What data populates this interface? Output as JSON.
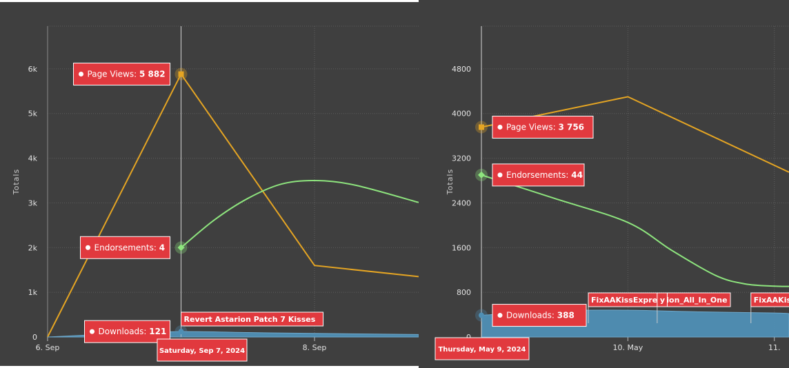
{
  "colors": {
    "background": "#3f3f3f",
    "grid": "#5e5e5e",
    "page_views": "#e5a523",
    "endorsements": "#8ee57e",
    "downloads": "#4f8fb5",
    "tooltip": "#e1393e"
  },
  "chart_data": [
    {
      "type": "line",
      "ylabel": "Totals",
      "xlabel": "",
      "ylim": [
        0,
        7000
      ],
      "x_ticks": [
        {
          "x": 6.0,
          "label": "6. Sep"
        },
        {
          "x": 8.0,
          "label": "8. Sep"
        }
      ],
      "y_ticks": [
        {
          "v": 0,
          "label": "0"
        },
        {
          "v": 1000,
          "label": "1k"
        },
        {
          "v": 2000,
          "label": "2k"
        },
        {
          "v": 3000,
          "label": "3k"
        },
        {
          "v": 4000,
          "label": "4k"
        },
        {
          "v": 5000,
          "label": "5k"
        },
        {
          "v": 6000,
          "label": "6k"
        }
      ],
      "grid": true,
      "x_range": [
        6.0,
        8.78
      ],
      "series": [
        {
          "name": "Page Views",
          "key": "page_views",
          "kind": "line",
          "marker": "square",
          "x": [
            6.0,
            7.0,
            8.0,
            8.78
          ],
          "values": [
            0,
            5882,
            1600,
            1350
          ]
        },
        {
          "name": "Endorsements",
          "key": "endorsements",
          "kind": "spline",
          "marker": "diamond",
          "x": [
            7.0,
            7.25,
            7.5,
            7.75,
            8.0,
            8.3,
            8.78
          ],
          "values": [
            2000,
            2620,
            3100,
            3420,
            3500,
            3400,
            3010
          ]
        },
        {
          "name": "Downloads",
          "key": "downloads",
          "kind": "area",
          "marker": "circle",
          "x": [
            6.0,
            6.5,
            7.0,
            7.5,
            8.0,
            8.78
          ],
          "values": [
            0,
            70,
            121,
            100,
            80,
            55
          ]
        }
      ],
      "hover_x": 7.0,
      "tooltips": [
        {
          "key": "page_views",
          "label": "Page Views: ",
          "value": "5 882"
        },
        {
          "key": "endorsements",
          "label": "Endorsements: ",
          "value": "4"
        },
        {
          "key": "downloads",
          "label": "Downloads: ",
          "value": "121"
        }
      ],
      "date_label": "Saturday, Sep 7, 2024",
      "flags": [
        {
          "x": 7.0,
          "text": "Revert Astarion Patch 7 Kisses"
        }
      ]
    },
    {
      "type": "line",
      "ylabel": "Totals",
      "xlabel": "",
      "ylim": [
        0,
        5600
      ],
      "x_ticks": [
        {
          "x": 10.0,
          "label": "10. May"
        },
        {
          "x": 11.0,
          "label": "11."
        }
      ],
      "y_ticks": [
        {
          "v": 0,
          "label": "0"
        },
        {
          "v": 800,
          "label": "800"
        },
        {
          "v": 1600,
          "label": "1600"
        },
        {
          "v": 2400,
          "label": "2400"
        },
        {
          "v": 3200,
          "label": "3200"
        },
        {
          "v": 4000,
          "label": "4000"
        },
        {
          "v": 4800,
          "label": "4800"
        }
      ],
      "grid": true,
      "x_range": [
        9.0,
        11.1
      ],
      "series": [
        {
          "name": "Page Views",
          "key": "page_views",
          "kind": "line",
          "marker": "square",
          "x": [
            9.0,
            10.0,
            11.1
          ],
          "values": [
            3756,
            4300,
            2950
          ]
        },
        {
          "name": "Endorsements",
          "key": "endorsements",
          "kind": "spline",
          "marker": "diamond",
          "x": [
            9.0,
            9.5,
            10.0,
            10.3,
            10.6,
            10.8,
            11.0,
            11.1
          ],
          "values": [
            2900,
            2480,
            2050,
            1550,
            1100,
            950,
            910,
            905
          ]
        },
        {
          "name": "Downloads",
          "key": "downloads",
          "kind": "area",
          "marker": "circle",
          "x": [
            9.0,
            9.5,
            10.0,
            10.5,
            11.0,
            11.1
          ],
          "values": [
            388,
            470,
            480,
            450,
            430,
            420
          ]
        }
      ],
      "hover_x": 9.0,
      "tooltips": [
        {
          "key": "page_views",
          "label": "Page Views: ",
          "value": "3 756"
        },
        {
          "key": "endorsements",
          "label": "Endorsements: ",
          "value": "44"
        },
        {
          "key": "downloads",
          "label": "Downloads: ",
          "value": "388"
        }
      ],
      "date_label": "Thursday, May 9, 2024",
      "flags": [
        {
          "x": 9.73,
          "text": "FixAAKissExpression_All_In_One"
        },
        {
          "x": 10.2,
          "text": "y"
        },
        {
          "x": 10.84,
          "text": "FixAAKiss"
        }
      ]
    }
  ]
}
